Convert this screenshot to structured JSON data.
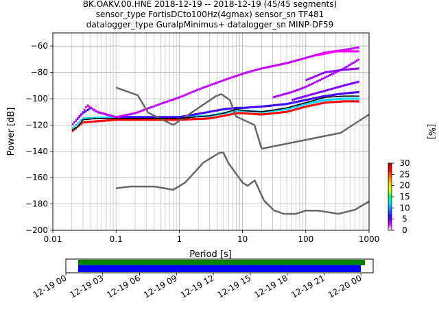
{
  "title_lines": [
    "BK.OAKV.00.HNE   2018-12-19 -- 2018-12-19  (45/45 segments)",
    "sensor_type FortisDCto100Hz(4gmax) sensor_sn TF481",
    "datalogger_type GuralpMinimus+ datalogger_sn MINP-DF59"
  ],
  "chart_data": [
    {
      "type": "heatmap",
      "xlabel": "Period [s]",
      "ylabel": "Power [dB]",
      "xscale": "log",
      "xlim": [
        0.01,
        1000
      ],
      "ylim": [
        -200,
        -50
      ],
      "xticks": [
        0.01,
        0.1,
        1,
        10,
        100,
        1000
      ],
      "xtick_labels": [
        "0.01",
        "0.1",
        "1",
        "10",
        "100",
        "1000"
      ],
      "yticks": [
        -200,
        -180,
        -160,
        -140,
        -120,
        -100,
        -80,
        -60
      ],
      "ytick_labels": [
        "−200",
        "−180",
        "−160",
        "−140",
        "−120",
        "−100",
        "−80",
        "−60"
      ],
      "grid": true,
      "colorbar": {
        "label": "[%]",
        "range": [
          0,
          30
        ],
        "ticks": [
          0,
          5,
          10,
          15,
          20,
          25,
          30
        ],
        "tick_labels": [
          "0",
          "5",
          "10",
          "15",
          "20",
          "25",
          "30"
        ],
        "colors": [
          "#ffffff",
          "#c300ff",
          "#3c00ff",
          "#0078ff",
          "#00e0ff",
          "#00ff60",
          "#c8ff00",
          "#ffd000",
          "#ff6a00",
          "#ff0000",
          "#c40000"
        ]
      },
      "series": [
        {
          "name": "",
          "style": "mean",
          "color": "#000000",
          "x": [
            0.02,
            0.025,
            0.03,
            0.05,
            0.1,
            0.3,
            1,
            3,
            5,
            8,
            10,
            20,
            50,
            100,
            200,
            400,
            700
          ],
          "y": [
            -124,
            -121,
            -116,
            -115,
            -115,
            -115,
            -115,
            -113,
            -111,
            -108,
            -109,
            -110,
            -107,
            -103,
            -99,
            -98,
            -98
          ]
        },
        {
          "name": "",
          "style": "noise-model",
          "color": "#666666",
          "x": [
            0.1,
            0.22,
            0.32,
            0.8,
            3.8,
            4.6,
            6.3,
            7.9,
            15.4,
            20,
            354.8,
            1000
          ],
          "y": [
            -91.5,
            -97.4,
            -110.5,
            -120,
            -98,
            -96.5,
            -101,
            -113.5,
            -120,
            -138,
            -126,
            -112
          ]
        },
        {
          "name": "",
          "style": "noise-model",
          "color": "#666666",
          "x": [
            0.1,
            0.17,
            0.4,
            0.8,
            1.24,
            2.4,
            4.3,
            5,
            6,
            10,
            12,
            15.6,
            21.9,
            31.6,
            45,
            70,
            101,
            154,
            328,
            600,
            1000
          ],
          "y": [
            -168,
            -166.7,
            -166.7,
            -169.2,
            -163.7,
            -148.6,
            -141.1,
            -141.1,
            -149,
            -163.8,
            -166.2,
            -162.1,
            -177.5,
            -185,
            -187.5,
            -187.5,
            -185,
            -185,
            -187.5,
            -184.4,
            -178
          ]
        }
      ],
      "pdf_bands": [
        {
          "color": "#ff0000",
          "x": [
            0.02,
            0.03,
            0.1,
            1,
            3,
            5,
            8,
            10,
            20,
            50,
            100,
            200,
            400,
            700
          ],
          "y": [
            -125,
            -118,
            -116,
            -116,
            -115,
            -113,
            -111,
            -111,
            -112,
            -110,
            -106,
            -103,
            -102,
            -102
          ]
        },
        {
          "color": "#00d8ff",
          "x": [
            0.02,
            0.03,
            0.1,
            1,
            3,
            5,
            8,
            10,
            20,
            50,
            100,
            200,
            400,
            700
          ],
          "y": [
            -123,
            -115,
            -114,
            -114,
            -113,
            -111,
            -109,
            -109,
            -110,
            -108,
            -104,
            -101,
            -100,
            -100
          ]
        },
        {
          "color": "#3c00ff",
          "x": [
            0.02,
            0.03,
            0.04,
            0.05,
            0.1,
            1,
            3,
            5,
            8,
            10,
            20,
            50,
            100,
            200,
            400,
            700
          ],
          "y": [
            -120,
            -111,
            -107,
            -110,
            -114,
            -114,
            -110,
            -108,
            -107,
            -107,
            -106,
            -104,
            -101,
            -98,
            -96,
            -95
          ]
        },
        {
          "color": "#c300ff",
          "x": [
            0.02,
            0.03,
            0.035,
            0.05,
            0.1,
            0.2,
            0.5,
            1,
            2,
            5,
            10,
            20,
            50,
            100,
            200,
            400,
            700
          ],
          "y": [
            -120,
            -110,
            -105,
            -110,
            -114,
            -111,
            -104,
            -99,
            -93,
            -86,
            -81,
            -77,
            -73,
            -69,
            -65,
            -63,
            -61
          ]
        },
        {
          "color": "#a800ff",
          "x": [
            30,
            60,
            100,
            200,
            400,
            700
          ],
          "y": [
            -99,
            -95,
            -91,
            -84,
            -77,
            -70
          ]
        },
        {
          "color": "#7a00ff",
          "x": [
            60,
            100,
            200,
            400,
            700
          ],
          "y": [
            -101,
            -98,
            -94,
            -90,
            -87
          ]
        },
        {
          "color": "#9000ff",
          "x": [
            100,
            200,
            400,
            700
          ],
          "y": [
            -86,
            -80,
            -78,
            -77
          ]
        },
        {
          "color": "#ff00ff",
          "x": [
            150,
            300,
            700
          ],
          "y": [
            -67,
            -64,
            -64
          ]
        }
      ]
    },
    {
      "type": "bar",
      "x_tick_labels": [
        "12-19 00",
        "12-19 03",
        "12-19 06",
        "12-19 09",
        "12-19 12",
        "12-19 15",
        "12-19 18",
        "12-19 21",
        "12-20 00"
      ],
      "xlim": [
        "2018-12-19 00:00",
        "2018-12-20 01:00"
      ],
      "bars": [
        {
          "color": "#008000",
          "start": "2018-12-19 01:00",
          "end": "2018-12-20 00:20"
        },
        {
          "color": "#0000ff",
          "start": "2018-12-19 01:00",
          "end": "2018-12-20 00:00"
        }
      ]
    }
  ]
}
